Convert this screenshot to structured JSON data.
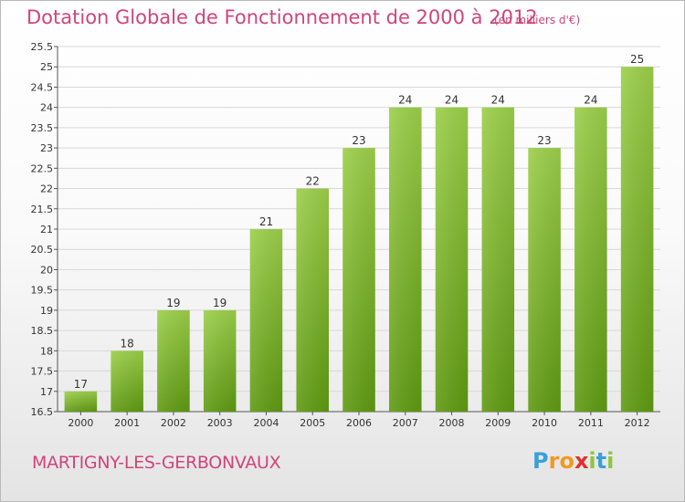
{
  "title": "Dotation Globale de Fonctionnement de 2000 à 2012",
  "unit_note": "(en milliers d'€)",
  "commune": "MARTIGNY-LES-GERBONVAUX",
  "logo": {
    "letters": [
      "P",
      "r",
      "o",
      "x",
      "i",
      "t",
      "i"
    ],
    "colors": [
      "#3aa0d8",
      "#f29a1d",
      "#f29a1d",
      "#e0302f",
      "#8dc63f",
      "#3aa0d8",
      "#8dc63f"
    ]
  },
  "colors": {
    "bar_top": "#9ccf4a",
    "bar_bottom": "#5f9a12",
    "title": "#d0457a",
    "grid": "#d8d8d8"
  },
  "chart_data": {
    "type": "bar",
    "title": "Dotation Globale de Fonctionnement de 2000 à 2012",
    "ylabel": "",
    "xlabel": "",
    "categories": [
      "2000",
      "2001",
      "2002",
      "2003",
      "2004",
      "2005",
      "2006",
      "2007",
      "2008",
      "2009",
      "2010",
      "2011",
      "2012"
    ],
    "values": [
      17,
      18,
      19,
      19,
      21,
      22,
      23,
      24,
      24,
      24,
      23,
      24,
      25
    ],
    "ylim": [
      16.5,
      25.5
    ],
    "yticks": [
      "16.5",
      "17",
      "17.5",
      "18",
      "18.5",
      "19",
      "19.5",
      "20",
      "20.5",
      "21",
      "21.5",
      "22",
      "22.5",
      "23",
      "23.5",
      "24",
      "24.5",
      "25",
      "25.5"
    ],
    "grid": true,
    "data_labels": true
  }
}
